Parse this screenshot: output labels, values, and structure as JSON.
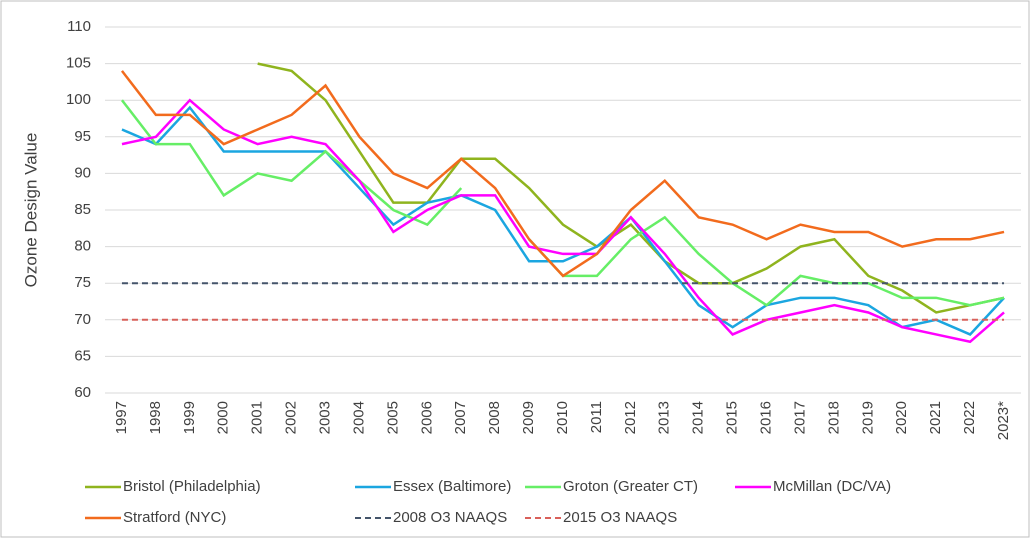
{
  "chart_data": {
    "type": "line",
    "y_label": "Ozone Design Value",
    "categories": [
      "1997",
      "1998",
      "1999",
      "2000",
      "2001",
      "2002",
      "2003",
      "2004",
      "2005",
      "2006",
      "2007",
      "2008",
      "2009",
      "2010",
      "2011",
      "2012",
      "2013",
      "2014",
      "2015",
      "2016",
      "2017",
      "2018",
      "2019",
      "2020",
      "2021",
      "2022",
      "2023*"
    ],
    "series": [
      {
        "name": "Bristol (Philadelphia)",
        "color": "#8fb41e",
        "values": [
          null,
          null,
          null,
          null,
          105,
          104,
          100,
          93,
          86,
          86,
          92,
          92,
          88,
          83,
          80,
          83,
          78,
          75,
          75,
          77,
          80,
          81,
          76,
          74,
          71,
          72,
          73
        ]
      },
      {
        "name": "Essex (Baltimore)",
        "color": "#1ba6e0",
        "values": [
          96,
          94,
          99,
          93,
          93,
          93,
          93,
          88,
          83,
          86,
          87,
          85,
          78,
          78,
          80,
          84,
          78,
          72,
          69,
          72,
          73,
          73,
          72,
          69,
          70,
          68,
          73
        ]
      },
      {
        "name": "Groton (Greater CT)",
        "color": "#66ee66",
        "values": [
          100,
          94,
          94,
          87,
          90,
          89,
          93,
          89,
          85,
          83,
          88,
          null,
          81,
          76,
          76,
          81,
          84,
          79,
          75,
          72,
          76,
          75,
          75,
          73,
          73,
          72,
          73
        ]
      },
      {
        "name": "McMillan (DC/VA)",
        "color": "#ff00ff",
        "values": [
          94,
          95,
          100,
          96,
          94,
          95,
          94,
          89,
          82,
          85,
          87,
          87,
          80,
          79,
          79,
          84,
          79,
          73,
          68,
          70,
          71,
          72,
          71,
          69,
          68,
          67,
          71
        ]
      },
      {
        "name": "Stratford (NYC)",
        "color": "#f26b1d",
        "values": [
          104,
          98,
          98,
          94,
          96,
          98,
          102,
          95,
          90,
          88,
          92,
          88,
          81,
          76,
          79,
          85,
          89,
          84,
          83,
          81,
          83,
          82,
          82,
          80,
          81,
          81,
          82
        ]
      },
      {
        "name": "2008 O3 NAAQS",
        "color": "#44546a",
        "dashed": true,
        "values": [
          75,
          75,
          75,
          75,
          75,
          75,
          75,
          75,
          75,
          75,
          75,
          75,
          75,
          75,
          75,
          75,
          75,
          75,
          75,
          75,
          75,
          75,
          75,
          75,
          75,
          75,
          75
        ]
      },
      {
        "name": "2015 O3 NAAQS",
        "color": "#d9605a",
        "dashed": true,
        "values": [
          70,
          70,
          70,
          70,
          70,
          70,
          70,
          70,
          70,
          70,
          70,
          70,
          70,
          70,
          70,
          70,
          70,
          70,
          70,
          70,
          70,
          70,
          70,
          70,
          70,
          70,
          70
        ]
      }
    ],
    "ylim": [
      60,
      110
    ],
    "yticks": [
      60,
      65,
      70,
      75,
      80,
      85,
      90,
      95,
      100,
      105,
      110
    ],
    "grid": true,
    "legend": "bottom"
  }
}
